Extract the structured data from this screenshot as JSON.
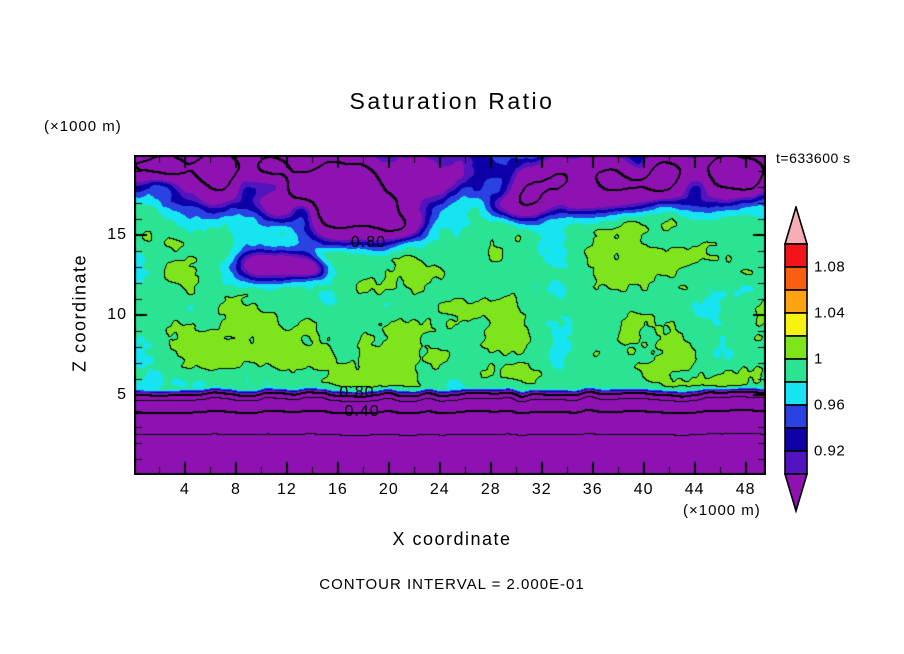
{
  "chart_data": {
    "type": "heatmap",
    "style": "filled-contour-plot",
    "title": "Saturation Ratio",
    "time_label": "t=633600 s",
    "footer": "CONTOUR INTERVAL = 2.000E-01",
    "contour_interval": 0.2,
    "grid": false,
    "x_axis": {
      "label": "X coordinate",
      "units": "(×1000 m)",
      "min": 0,
      "max": 49.6,
      "tick_labels": [
        4,
        8,
        12,
        16,
        20,
        24,
        28,
        32,
        36,
        40,
        44,
        48
      ],
      "minor_step": 2
    },
    "y_axis": {
      "label": "Z coordinate",
      "units": "(×1000 m)",
      "min": 0,
      "max": 20,
      "tick_labels": [
        5,
        10,
        15
      ],
      "minor_step": 1
    },
    "contour_line_levels": [
      {
        "level": 0.2,
        "width": 1
      },
      {
        "level": 0.4,
        "width": 2
      },
      {
        "level": 0.6,
        "width": 1
      },
      {
        "level": 0.8,
        "width": 2
      },
      {
        "level": 1.0,
        "width": 1
      }
    ],
    "contour_labels": [
      {
        "text": "0.80",
        "x": 18.4,
        "z": 14.5
      },
      {
        "text": "0.80",
        "x": 17.5,
        "z": 5.1
      },
      {
        "text": "0.40",
        "x": 17.9,
        "z": 3.95
      }
    ],
    "colorbar": {
      "min": 0.9,
      "max": 1.1,
      "step": 0.02,
      "orientation": "vertical",
      "position": "right",
      "segment_colors_bottom_to_top": [
        "#5214BE",
        "#0D00A8",
        "#2A42E2",
        "#16E4F0",
        "#2BE493",
        "#7EE41C",
        "#F8F212",
        "#FCA213",
        "#F95F11",
        "#F3131B"
      ],
      "below_min_color": "#8E12B2",
      "above_max_color": "#F6ADB5",
      "outline_color": "#000000",
      "labels": [
        {
          "value": 1.08,
          "text": "1.08"
        },
        {
          "value": 1.04,
          "text": "1.04"
        },
        {
          "value": 1.0,
          "text": "1"
        },
        {
          "value": 0.96,
          "text": "0.96"
        },
        {
          "value": 0.92,
          "text": "0.92"
        }
      ]
    },
    "field_model": {
      "description": "approximation of the saturation-ratio field: mottled near-1 values aloft, dry (purple) blobs near domain top and mid-levels, strong stratified dry layer below z=5",
      "base": 0.995,
      "octaves": [
        {
          "amp": 0.019,
          "sx": 4.2,
          "sz": 2.6,
          "seed": 11
        },
        {
          "amp": 0.01,
          "sx": 1.5,
          "sz": 1.05,
          "seed": 23
        },
        {
          "amp": 0.005,
          "sx": 0.55,
          "sz": 0.45,
          "seed": 37
        }
      ],
      "blob_noise": {
        "sx": 2.2,
        "sz": 1.5,
        "seed": 71
      },
      "blobs": [
        {
          "x": 5.5,
          "z": 19.0,
          "sx": 5.0,
          "sz": 1.35,
          "a": 0.34
        },
        {
          "x": 17.0,
          "z": 17.4,
          "sx": 3.6,
          "sz": 1.6,
          "a": 0.42
        },
        {
          "x": 24.5,
          "z": 19.6,
          "sx": 2.5,
          "sz": 0.9,
          "a": 0.18
        },
        {
          "x": 30.5,
          "z": 17.0,
          "sx": 1.6,
          "sz": 0.7,
          "a": 0.16
        },
        {
          "x": 37.5,
          "z": 18.6,
          "sx": 5.2,
          "sz": 1.15,
          "a": 0.34
        },
        {
          "x": 47.8,
          "z": 19.0,
          "sx": 2.2,
          "sz": 1.0,
          "a": 0.26
        },
        {
          "x": 10.8,
          "z": 13.1,
          "sx": 1.7,
          "sz": 0.65,
          "a": 0.17
        },
        {
          "x": 13.8,
          "z": 12.9,
          "sx": 0.9,
          "sz": 0.45,
          "a": 0.13
        },
        {
          "x": 20.6,
          "z": 15.6,
          "sx": 1.1,
          "sz": 0.5,
          "a": 0.14
        }
      ],
      "low_layer": {
        "profile": [
          [
            0,
            0.04
          ],
          [
            1.2,
            0.12
          ],
          [
            2.5,
            0.2
          ],
          [
            3.3,
            0.3
          ],
          [
            3.94,
            0.4
          ],
          [
            4.4,
            0.5
          ],
          [
            4.7,
            0.6
          ],
          [
            4.9,
            0.7
          ],
          [
            5.06,
            0.8
          ],
          [
            5.2,
            0.9
          ],
          [
            5.45,
            0.985
          ]
        ],
        "wiggle_amp_base": 0.06,
        "wiggle_amp_extra": 0.16,
        "wiggle_scale": 1.05,
        "seed": 51,
        "blend_lo": 5.0,
        "blend_hi": 5.85
      }
    }
  }
}
